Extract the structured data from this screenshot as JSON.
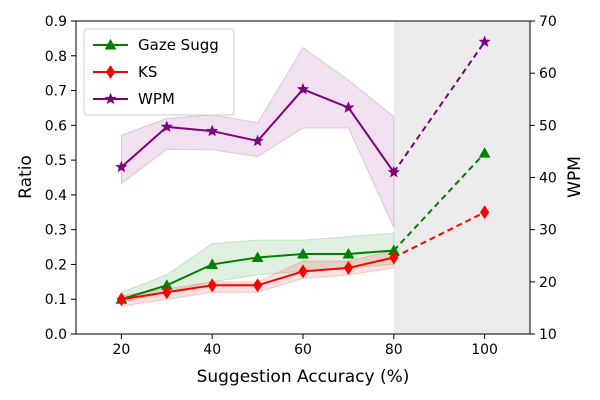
{
  "chart_data": {
    "type": "line",
    "xlabel": "Suggestion Accuracy (%)",
    "ylabel_left": "Ratio",
    "ylabel_right": "WPM",
    "xlim": [
      10,
      110
    ],
    "ylim_left": [
      0.0,
      0.9
    ],
    "ylim_right": [
      10,
      70
    ],
    "x_ticks": [
      20,
      40,
      60,
      80,
      100
    ],
    "y_ticks_left": [
      "0.0",
      "0.1",
      "0.2",
      "0.3",
      "0.4",
      "0.5",
      "0.6",
      "0.7",
      "0.8",
      "0.9"
    ],
    "y_ticks_right": [
      "10",
      "20",
      "30",
      "40",
      "50",
      "60",
      "70"
    ],
    "shaded_region_x": [
      80,
      110
    ],
    "legend_position": "top-left",
    "series": [
      {
        "name": "Gaze Sugg",
        "axis": "left",
        "color": "#008000",
        "marker": "triangle",
        "x": [
          20,
          30,
          40,
          50,
          60,
          70,
          80
        ],
        "values": [
          0.1,
          0.14,
          0.2,
          0.22,
          0.23,
          0.23,
          0.24
        ],
        "band_low": [
          0.09,
          0.12,
          0.15,
          0.17,
          0.18,
          0.19,
          0.2
        ],
        "band_high": [
          0.12,
          0.17,
          0.26,
          0.27,
          0.27,
          0.28,
          0.29
        ],
        "projection": {
          "x": [
            80,
            100
          ],
          "values": [
            0.24,
            0.52
          ]
        }
      },
      {
        "name": "KS",
        "axis": "left",
        "color": "#ff0000",
        "marker": "diamond",
        "x": [
          20,
          30,
          40,
          50,
          60,
          70,
          80
        ],
        "values": [
          0.1,
          0.12,
          0.14,
          0.14,
          0.18,
          0.19,
          0.22
        ],
        "band_low": [
          0.08,
          0.1,
          0.12,
          0.12,
          0.16,
          0.17,
          0.19
        ],
        "band_high": [
          0.11,
          0.13,
          0.15,
          0.15,
          0.21,
          0.21,
          0.24
        ],
        "projection": {
          "x": [
            80,
            100
          ],
          "values": [
            0.22,
            0.35
          ]
        }
      },
      {
        "name": "WPM",
        "axis": "right",
        "color": "#800080",
        "marker": "star",
        "x": [
          20,
          30,
          40,
          50,
          60,
          70,
          80
        ],
        "values": [
          42,
          49.7,
          48.9,
          47.0,
          56.9,
          53.4,
          41.0
        ],
        "band_low": [
          38.8,
          45.4,
          45.3,
          44.0,
          49.5,
          49.5,
          30.4
        ],
        "band_high": [
          48.1,
          51.3,
          52.0,
          50.5,
          64.9,
          58.7,
          51.7
        ],
        "projection": {
          "x": [
            80,
            100
          ],
          "values": [
            41.0,
            66.0
          ]
        }
      }
    ]
  }
}
